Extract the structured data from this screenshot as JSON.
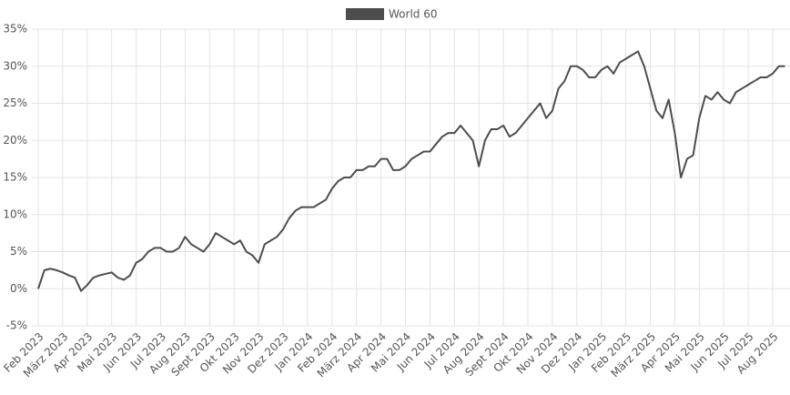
{
  "chart_data": {
    "type": "line",
    "categories": [
      "Feb 2023",
      null,
      null,
      null,
      "März 2023",
      null,
      null,
      null,
      "Apr 2023",
      null,
      null,
      null,
      "Mai 2023",
      null,
      null,
      null,
      "Jun 2023",
      null,
      null,
      null,
      "Jul 2023",
      null,
      null,
      null,
      "Aug 2023",
      null,
      null,
      null,
      "Sept 2023",
      null,
      null,
      null,
      "Okt 2023",
      null,
      null,
      null,
      "Nov 2023",
      null,
      null,
      null,
      "Dez 2023",
      null,
      null,
      null,
      "Jan 2024",
      null,
      null,
      null,
      "Feb 2024",
      null,
      null,
      null,
      "März 2024",
      null,
      null,
      null,
      "Apr 2024",
      null,
      null,
      null,
      "Mai 2024",
      null,
      null,
      null,
      "Jun 2024",
      null,
      null,
      null,
      "Jul 2024",
      null,
      null,
      null,
      "Aug 2024",
      null,
      null,
      null,
      "Sept 2024",
      null,
      null,
      null,
      "Okt 2024",
      null,
      null,
      null,
      "Nov 2024",
      null,
      null,
      null,
      "Dez 2024",
      null,
      null,
      null,
      "Jan 2025",
      null,
      null,
      null,
      "Feb 2025",
      null,
      null,
      null,
      "März 2025",
      null,
      null,
      null,
      "Apr 2025",
      null,
      null,
      null,
      "Mai 2025",
      null,
      null,
      null,
      "Jun 2025",
      null,
      null,
      null,
      "Jul 2025",
      null,
      null,
      null,
      "Aug 2025",
      null,
      null
    ],
    "series": [
      {
        "name": "World 60",
        "color": "#4d4d4d",
        "values": [
          0,
          2.5,
          2.7,
          2.5,
          2.2,
          1.8,
          1.5,
          -0.3,
          0.5,
          1.5,
          1.8,
          2.0,
          2.2,
          1.5,
          1.2,
          1.8,
          3.5,
          4.0,
          5.0,
          5.5,
          5.5,
          5.0,
          5.0,
          5.5,
          7.0,
          6.0,
          5.5,
          5.0,
          6.0,
          7.5,
          7.0,
          6.5,
          6.0,
          6.5,
          5.0,
          4.5,
          3.5,
          6.0,
          6.5,
          7.0,
          8.0,
          9.5,
          10.5,
          11.0,
          11.0,
          11.0,
          11.5,
          12.0,
          13.5,
          14.5,
          15.0,
          15.0,
          16.0,
          16.0,
          16.5,
          16.5,
          17.5,
          17.5,
          16.0,
          16.0,
          16.5,
          17.5,
          18.0,
          18.5,
          18.5,
          19.5,
          20.5,
          21.0,
          21.0,
          22.0,
          21.0,
          20.0,
          16.5,
          20.0,
          21.5,
          21.5,
          22.0,
          20.5,
          21.0,
          22.0,
          23.0,
          24.0,
          25.0,
          23.0,
          24.0,
          27.0,
          28.0,
          30.0,
          30.0,
          29.5,
          28.5,
          28.5,
          29.5,
          30.0,
          29.0,
          30.5,
          31.0,
          31.5,
          32.0,
          30.0,
          27.0,
          24.0,
          23.0,
          25.5,
          21.0,
          15.0,
          17.5,
          18.0,
          23.0,
          26.0,
          25.5,
          26.5,
          25.5,
          25.0,
          26.5,
          27.0,
          27.5,
          28.0,
          28.5,
          28.5,
          29.0,
          30.0,
          30.0
        ]
      }
    ],
    "ylim": [
      -5,
      35
    ],
    "yticks": [
      {
        "value": -5,
        "label": "-5%"
      },
      {
        "value": 0,
        "label": "0%"
      },
      {
        "value": 5,
        "label": "5%"
      },
      {
        "value": 10,
        "label": "10%"
      },
      {
        "value": 15,
        "label": "15%"
      },
      {
        "value": 20,
        "label": "20%"
      },
      {
        "value": 25,
        "label": "25%"
      },
      {
        "value": 30,
        "label": "30%"
      },
      {
        "value": 35,
        "label": "35%"
      }
    ],
    "grid": true,
    "legend": "top"
  }
}
